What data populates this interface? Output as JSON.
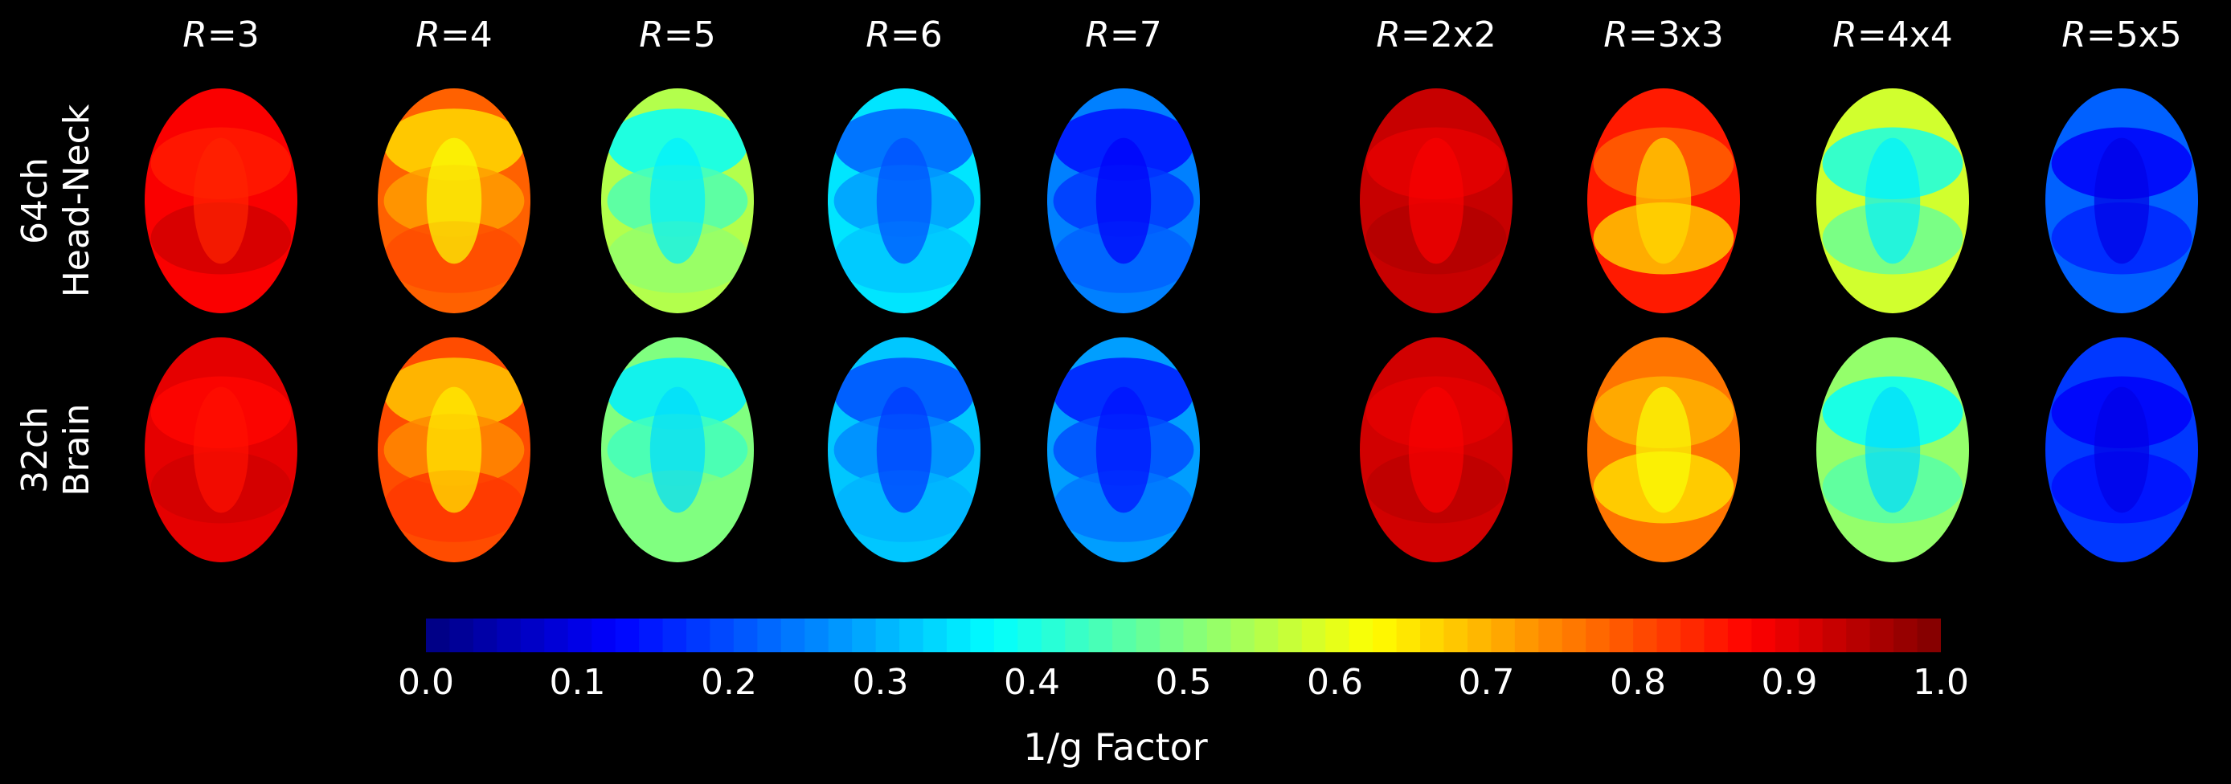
{
  "columns": [
    {
      "prefix": "R",
      "suffix": "=3"
    },
    {
      "prefix": "R",
      "suffix": "=4"
    },
    {
      "prefix": "R",
      "suffix": "=5"
    },
    {
      "prefix": "R",
      "suffix": "=6"
    },
    {
      "prefix": "R",
      "suffix": "=7"
    },
    {
      "prefix": "R",
      "suffix": "=2x2"
    },
    {
      "prefix": "R",
      "suffix": "=3x3"
    },
    {
      "prefix": "R",
      "suffix": "=4x4"
    },
    {
      "prefix": "R",
      "suffix": "=5x5"
    }
  ],
  "rows": [
    {
      "line1": "64ch",
      "line2": "Head-Neck"
    },
    {
      "line1": "32ch",
      "line2": "Brain"
    }
  ],
  "maps": [
    [
      {
        "base": 0.88,
        "bands": [
          0.85,
          0.92
        ],
        "min": 0.84
      },
      {
        "base": 0.78,
        "bands": [
          0.66,
          0.72,
          0.8
        ],
        "min": 0.62
      },
      {
        "base": 0.55,
        "bands": [
          0.38,
          0.45,
          0.52
        ],
        "min": 0.36
      },
      {
        "base": 0.35,
        "bands": [
          0.22,
          0.28,
          0.32
        ],
        "min": 0.2
      },
      {
        "base": 0.25,
        "bands": [
          0.14,
          0.18,
          0.22
        ],
        "min": 0.12
      },
      {
        "base": 0.93,
        "bands": [
          0.9,
          0.95
        ],
        "min": 0.88
      },
      {
        "base": 0.85,
        "bands": [
          0.78,
          0.68
        ],
        "min": 0.66
      },
      {
        "base": 0.58,
        "bands": [
          0.4,
          0.48
        ],
        "min": 0.36
      },
      {
        "base": 0.22,
        "bands": [
          0.12,
          0.16
        ],
        "min": 0.1
      }
    ],
    [
      {
        "base": 0.9,
        "bands": [
          0.87,
          0.92
        ],
        "min": 0.86
      },
      {
        "base": 0.8,
        "bands": [
          0.68,
          0.74,
          0.82
        ],
        "min": 0.64
      },
      {
        "base": 0.5,
        "bands": [
          0.36,
          0.44,
          0.5
        ],
        "min": 0.34
      },
      {
        "base": 0.32,
        "bands": [
          0.2,
          0.26,
          0.3
        ],
        "min": 0.18
      },
      {
        "base": 0.28,
        "bands": [
          0.15,
          0.2,
          0.24
        ],
        "min": 0.14
      },
      {
        "base": 0.92,
        "bands": [
          0.9,
          0.94
        ],
        "min": 0.88
      },
      {
        "base": 0.76,
        "bands": [
          0.7,
          0.66
        ],
        "min": 0.62
      },
      {
        "base": 0.52,
        "bands": [
          0.38,
          0.46
        ],
        "min": 0.34
      },
      {
        "base": 0.18,
        "bands": [
          0.12,
          0.14
        ],
        "min": 0.1
      }
    ]
  ],
  "colorbar": {
    "min": 0.0,
    "max": 1.0,
    "ticks": [
      "0.0",
      "0.1",
      "0.2",
      "0.3",
      "0.4",
      "0.5",
      "0.6",
      "0.7",
      "0.8",
      "0.9",
      "1.0"
    ],
    "label": "1/g Factor",
    "colormap": "jet"
  }
}
